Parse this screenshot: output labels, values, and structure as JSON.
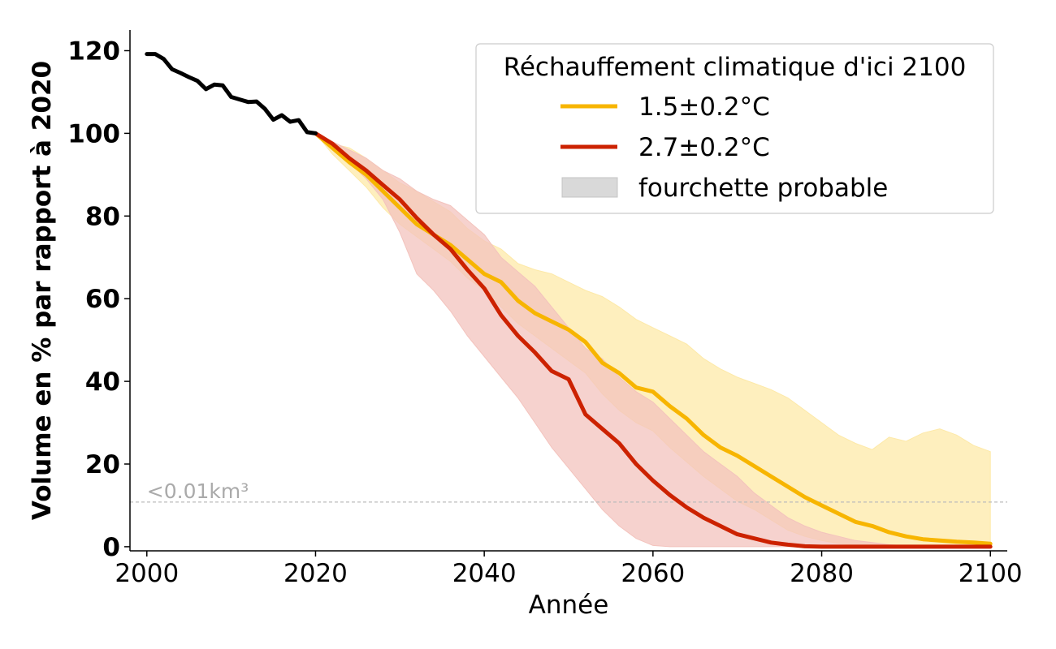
{
  "chart_data": {
    "type": "line",
    "xlabel": "Année",
    "ylabel": "Volume en % par rapport à 2020",
    "xlim": [
      1998,
      2102
    ],
    "ylim": [
      -1,
      125
    ],
    "x_ticks": [
      2000,
      2020,
      2040,
      2060,
      2080,
      2100
    ],
    "y_ticks": [
      0,
      20,
      40,
      60,
      80,
      100,
      120
    ],
    "grid": false,
    "threshold": {
      "value": 10.8,
      "label": "<0.01km³",
      "color": "#bbbbbb"
    },
    "legend": {
      "title": "Réchauffement climatique d'ici 2100",
      "placement": "top-right",
      "entries": [
        {
          "label": "1.5±0.2°C",
          "kind": "line",
          "color": "#f7b500"
        },
        {
          "label": "2.7±0.2°C",
          "kind": "line",
          "color": "#cc2200"
        },
        {
          "label": "fourchette probable",
          "kind": "band",
          "color": "#d9d9d9"
        }
      ]
    },
    "series": [
      {
        "color": "#000000",
        "x": [
          2000,
          2001,
          2002,
          2003,
          2004,
          2005,
          2006,
          2007,
          2008,
          2009,
          2010,
          2011,
          2012,
          2013,
          2014,
          2015,
          2016,
          2017,
          2018,
          2019,
          2020
        ],
        "y": [
          119.2,
          119.2,
          118.0,
          115.5,
          114.6,
          113.6,
          112.7,
          110.7,
          111.8,
          111.6,
          108.8,
          108.2,
          107.6,
          107.7,
          105.9,
          103.3,
          104.4,
          102.8,
          103.2,
          100.3,
          100.0
        ]
      },
      {
        "color": "#f7b500",
        "band_color": "#fde9a8",
        "x": [
          2020,
          2022,
          2024,
          2026,
          2028,
          2030,
          2032,
          2034,
          2036,
          2038,
          2040,
          2042,
          2044,
          2046,
          2048,
          2050,
          2052,
          2054,
          2056,
          2058,
          2060,
          2062,
          2064,
          2066,
          2068,
          2070,
          2072,
          2074,
          2076,
          2078,
          2080,
          2082,
          2084,
          2086,
          2088,
          2090,
          2092,
          2094,
          2096,
          2098,
          2100
        ],
        "y": [
          100,
          96.5,
          93,
          90,
          86,
          82,
          78,
          75.5,
          73,
          69.5,
          66,
          64,
          59.5,
          56.5,
          54.5,
          52.5,
          49.5,
          44.5,
          42,
          38.5,
          37.5,
          34,
          31,
          27,
          24,
          22,
          19.5,
          17,
          14.5,
          12,
          10,
          8,
          6,
          5,
          3.5,
          2.5,
          1.8,
          1.5,
          1.2,
          1.0,
          0.7
        ],
        "upper": [
          100,
          97.5,
          96.5,
          94,
          91,
          88,
          86,
          83.5,
          81,
          77,
          74,
          72,
          68.5,
          67,
          66,
          64,
          62,
          60.5,
          58,
          55,
          53,
          51,
          49,
          45.5,
          43,
          41,
          39.5,
          38,
          36,
          33,
          30,
          27,
          25,
          23.5,
          26.5,
          25.5,
          27.5,
          28.5,
          27,
          24.5,
          23
        ],
        "lower": [
          100,
          95,
          91,
          87,
          82,
          78,
          75,
          72,
          69,
          65,
          62,
          58,
          54,
          51,
          48,
          45,
          42,
          37,
          33,
          30,
          28,
          24,
          20.5,
          17,
          14,
          11,
          9,
          6.5,
          4,
          2.5,
          1.5,
          0.8,
          0.3,
          0.1,
          0,
          0,
          0,
          0,
          0,
          0,
          0
        ]
      },
      {
        "color": "#cc2200",
        "band_color": "#f3c3bd",
        "x": [
          2020,
          2022,
          2024,
          2026,
          2028,
          2030,
          2032,
          2034,
          2036,
          2038,
          2040,
          2042,
          2044,
          2046,
          2048,
          2050,
          2052,
          2054,
          2056,
          2058,
          2060,
          2062,
          2064,
          2066,
          2068,
          2070,
          2072,
          2074,
          2076,
          2078,
          2080,
          2082,
          2084,
          2086,
          2088,
          2090,
          2092,
          2094,
          2096,
          2098,
          2100
        ],
        "y": [
          100,
          97.5,
          94,
          91,
          87.5,
          84,
          79.5,
          75.5,
          72,
          67,
          62.5,
          56,
          51,
          47,
          42.5,
          40.5,
          32,
          28.5,
          25,
          20,
          16,
          12.5,
          9.5,
          7,
          5,
          3,
          2,
          1,
          0.5,
          0.1,
          0,
          0,
          0,
          0,
          0,
          0,
          0,
          0,
          0,
          0,
          0
        ],
        "upper": [
          100,
          98,
          96,
          94,
          91,
          89,
          86,
          84,
          82.5,
          79,
          75.5,
          70,
          66.5,
          63,
          58,
          53,
          48,
          45.5,
          41,
          37.5,
          35,
          31,
          27,
          23,
          20,
          17,
          13,
          10,
          7,
          5,
          3.5,
          2.5,
          1.5,
          1,
          0.5,
          0.2,
          0,
          0,
          0,
          0,
          0
        ],
        "lower": [
          100,
          97,
          93,
          89,
          84,
          76,
          66,
          62,
          57,
          51,
          46,
          41,
          36,
          30,
          24,
          19,
          14,
          9,
          5,
          2,
          0.3,
          0,
          0,
          0,
          0,
          0,
          0,
          0,
          0,
          0,
          0,
          0,
          0,
          0,
          0,
          0,
          0,
          0,
          0,
          0,
          0
        ]
      }
    ]
  }
}
